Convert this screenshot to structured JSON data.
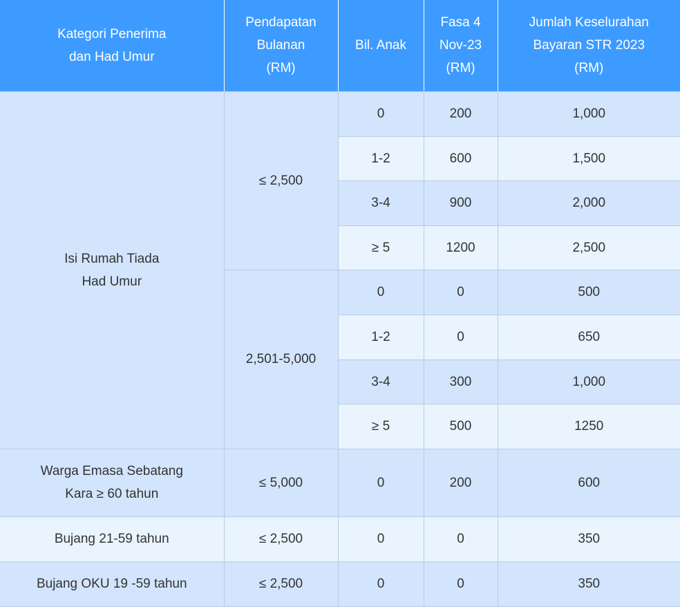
{
  "headers": [
    [
      "Kategori Penerima",
      "dan Had Umur"
    ],
    [
      "Pendapatan",
      "Bulanan",
      "(RM)"
    ],
    [
      "Bil. Anak"
    ],
    [
      "Fasa 4",
      "Nov-23",
      "(RM)"
    ],
    [
      "Jumlah Keselurahan",
      "Bayaran STR 2023",
      "(RM)"
    ]
  ],
  "groups": {
    "isi_rumah": [
      "Isi Rumah Tiada",
      "Had Umur"
    ],
    "income_1": "≤ 2,500",
    "income_2": "2,501-5,000"
  },
  "rows": [
    {
      "anak": "0",
      "fasa4": "200",
      "jumlah": "1,000"
    },
    {
      "anak": "1-2",
      "fasa4": "600",
      "jumlah": "1,500"
    },
    {
      "anak": "3-4",
      "fasa4": "900",
      "jumlah": "2,000"
    },
    {
      "anak": "≥ 5",
      "fasa4": "1200",
      "jumlah": "2,500"
    },
    {
      "anak": "0",
      "fasa4": "0",
      "jumlah": "500"
    },
    {
      "anak": "1-2",
      "fasa4": "0",
      "jumlah": "650"
    },
    {
      "anak": "3-4",
      "fasa4": "300",
      "jumlah": "1,000"
    },
    {
      "anak": "≥ 5",
      "fasa4": "500",
      "jumlah": "1250"
    }
  ],
  "warga": {
    "kategori": [
      "Warga Emasa Sebatang",
      "Kara  ≥ 60 tahun"
    ],
    "pendapatan": "≤ 5,000",
    "anak": "0",
    "fasa4": "200",
    "jumlah": "600"
  },
  "bujang": {
    "kategori": "Bujang 21-59 tahun",
    "pendapatan": "≤ 2,500",
    "anak": "0",
    "fasa4": "0",
    "jumlah": "350"
  },
  "oku": {
    "kategori": "Bujang OKU 19 -59 tahun",
    "pendapatan": "≤ 2,500",
    "anak": "0",
    "fasa4": "0",
    "jumlah": "350"
  }
}
